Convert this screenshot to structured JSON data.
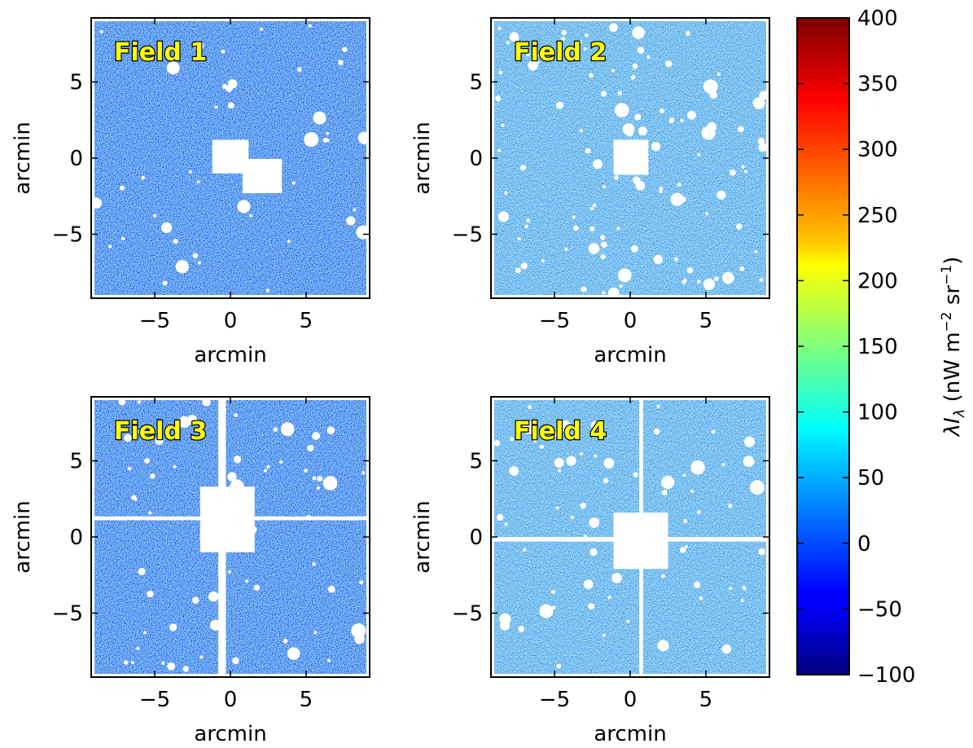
{
  "chart_data": [
    {
      "type": "image",
      "title": "Field 1",
      "xlabel": "arcmin",
      "ylabel": "arcmin",
      "xlim": [
        -9.2,
        9.2
      ],
      "ylim": [
        -9.2,
        9.2
      ],
      "xticks": [
        {
          "value": -5,
          "label": "−5"
        },
        0,
        5
      ],
      "yticks": [
        {
          "value": -5,
          "label": "−5"
        },
        0,
        5
      ]
    },
    {
      "type": "image",
      "title": "Field 2",
      "xlabel": "arcmin",
      "ylabel": "arcmin",
      "xlim": [
        -9.2,
        9.2
      ],
      "ylim": [
        -9.2,
        9.2
      ],
      "xticks": [
        {
          "value": -5,
          "label": "−5"
        },
        0,
        5
      ],
      "yticks": [
        {
          "value": -5,
          "label": "−5"
        },
        0,
        5
      ]
    },
    {
      "type": "image",
      "title": "Field 3",
      "xlabel": "arcmin",
      "ylabel": "arcmin",
      "xlim": [
        -9.2,
        9.2
      ],
      "ylim": [
        -9.2,
        9.2
      ],
      "xticks": [
        {
          "value": -5,
          "label": "−5"
        },
        0,
        5
      ],
      "yticks": [
        {
          "value": -5,
          "label": "−5"
        },
        0,
        5
      ]
    },
    {
      "type": "image",
      "title": "Field 4",
      "xlabel": "arcmin",
      "ylabel": "arcmin",
      "xlim": [
        -9.2,
        9.2
      ],
      "ylim": [
        -9.2,
        9.2
      ],
      "xticks": [
        {
          "value": -5,
          "label": "−5"
        },
        0,
        5
      ],
      "yticks": [
        {
          "value": -5,
          "label": "−5"
        },
        0,
        5
      ]
    }
  ],
  "colorbar": {
    "colormap": "jet",
    "lim": [
      -100,
      400
    ],
    "ticks": [
      {
        "value": -100,
        "label": "−100"
      },
      {
        "value": -50,
        "label": "−50"
      },
      0,
      50,
      100,
      150,
      200,
      250,
      300,
      350,
      400
    ],
    "label_parts": [
      "λI",
      "λ",
      " (nW m",
      "−2",
      " sr",
      "−1",
      ")"
    ]
  }
}
